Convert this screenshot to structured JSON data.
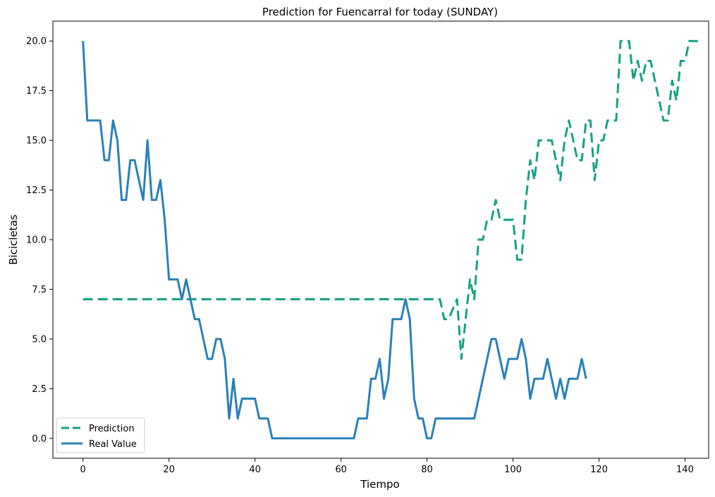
{
  "chart_data": {
    "type": "line",
    "title": "Prediction for Fuencarral for today (SUNDAY)",
    "xlabel": "Tiempo",
    "ylabel": "Bicicletas",
    "xlim": [
      -7,
      145.5
    ],
    "ylim": [
      -1,
      21
    ],
    "xticks": [
      0,
      20,
      40,
      60,
      80,
      100,
      120,
      140
    ],
    "xtick_labels": [
      "0",
      "20",
      "40",
      "60",
      "80",
      "100",
      "120",
      "140"
    ],
    "yticks": [
      0,
      2.5,
      5,
      7.5,
      10,
      12.5,
      15,
      17.5,
      20
    ],
    "ytick_labels": [
      "0.0",
      "2.5",
      "5.0",
      "7.5",
      "10.0",
      "12.5",
      "15.0",
      "17.5",
      "20.0"
    ],
    "grid": false,
    "legend_position": "lower-left",
    "series": [
      {
        "name": "Prediction",
        "color": "#16a085",
        "style": "dashed",
        "points": [
          [
            0,
            7
          ],
          [
            83,
            7
          ],
          [
            84,
            6
          ],
          [
            85,
            6
          ],
          [
            86,
            6.5
          ],
          [
            87,
            7
          ],
          [
            88,
            4
          ],
          [
            89,
            6
          ],
          [
            90,
            8
          ],
          [
            91,
            7
          ],
          [
            92,
            10
          ],
          [
            93,
            10
          ],
          [
            94,
            11
          ],
          [
            95,
            11
          ],
          [
            96,
            12
          ],
          [
            97,
            11
          ],
          [
            98,
            11
          ],
          [
            99,
            11
          ],
          [
            100,
            11
          ],
          [
            101,
            9
          ],
          [
            102,
            9
          ],
          [
            103,
            12
          ],
          [
            104,
            14
          ],
          [
            105,
            13
          ],
          [
            106,
            15
          ],
          [
            107,
            15
          ],
          [
            108,
            15
          ],
          [
            109,
            15
          ],
          [
            110,
            14
          ],
          [
            111,
            13
          ],
          [
            112,
            15
          ],
          [
            113,
            16
          ],
          [
            114,
            15
          ],
          [
            115,
            14
          ],
          [
            116,
            14
          ],
          [
            117,
            16
          ],
          [
            118,
            16
          ],
          [
            119,
            13
          ],
          [
            120,
            15
          ],
          [
            121,
            15
          ],
          [
            122,
            16
          ],
          [
            123,
            16
          ],
          [
            124,
            16
          ],
          [
            125,
            20
          ],
          [
            126,
            20
          ],
          [
            127,
            20
          ],
          [
            128,
            18
          ],
          [
            129,
            19
          ],
          [
            130,
            18
          ],
          [
            131,
            19
          ],
          [
            132,
            19
          ],
          [
            133,
            18
          ],
          [
            134,
            17
          ],
          [
            135,
            16
          ],
          [
            136,
            16
          ],
          [
            137,
            18
          ],
          [
            138,
            17
          ],
          [
            139,
            19
          ],
          [
            140,
            19
          ],
          [
            141,
            20
          ],
          [
            142,
            20
          ],
          [
            143,
            20
          ]
        ]
      },
      {
        "name": "Real Value",
        "color": "#2980b9",
        "style": "solid",
        "points": [
          [
            0,
            20
          ],
          [
            1,
            16
          ],
          [
            2,
            16
          ],
          [
            3,
            16
          ],
          [
            4,
            16
          ],
          [
            5,
            14
          ],
          [
            6,
            14
          ],
          [
            7,
            16
          ],
          [
            8,
            15
          ],
          [
            9,
            12
          ],
          [
            10,
            12
          ],
          [
            11,
            14
          ],
          [
            12,
            14
          ],
          [
            13,
            13
          ],
          [
            14,
            12
          ],
          [
            15,
            15
          ],
          [
            16,
            12
          ],
          [
            17,
            12
          ],
          [
            18,
            13
          ],
          [
            19,
            11
          ],
          [
            20,
            8
          ],
          [
            21,
            8
          ],
          [
            22,
            8
          ],
          [
            23,
            7
          ],
          [
            24,
            8
          ],
          [
            25,
            7
          ],
          [
            26,
            6
          ],
          [
            27,
            6
          ],
          [
            28,
            5
          ],
          [
            29,
            4
          ],
          [
            30,
            4
          ],
          [
            31,
            5
          ],
          [
            32,
            5
          ],
          [
            33,
            4
          ],
          [
            34,
            1
          ],
          [
            35,
            3
          ],
          [
            36,
            1
          ],
          [
            37,
            2
          ],
          [
            38,
            2
          ],
          [
            39,
            2
          ],
          [
            40,
            2
          ],
          [
            41,
            1
          ],
          [
            42,
            1
          ],
          [
            43,
            1
          ],
          [
            44,
            0
          ],
          [
            63,
            0
          ],
          [
            64,
            1
          ],
          [
            65,
            1
          ],
          [
            66,
            1
          ],
          [
            67,
            3
          ],
          [
            68,
            3
          ],
          [
            69,
            4
          ],
          [
            70,
            2
          ],
          [
            71,
            3
          ],
          [
            72,
            6
          ],
          [
            73,
            6
          ],
          [
            74,
            6
          ],
          [
            75,
            7
          ],
          [
            76,
            6
          ],
          [
            77,
            2
          ],
          [
            78,
            1
          ],
          [
            79,
            1
          ],
          [
            80,
            0
          ],
          [
            81,
            0
          ],
          [
            82,
            1
          ],
          [
            91,
            1
          ],
          [
            92,
            2
          ],
          [
            93,
            3
          ],
          [
            94,
            4
          ],
          [
            95,
            5
          ],
          [
            96,
            5
          ],
          [
            97,
            4
          ],
          [
            98,
            3
          ],
          [
            99,
            4
          ],
          [
            100,
            4
          ],
          [
            101,
            4
          ],
          [
            102,
            5
          ],
          [
            103,
            4
          ],
          [
            104,
            2
          ],
          [
            105,
            3
          ],
          [
            106,
            3
          ],
          [
            107,
            3
          ],
          [
            108,
            4
          ],
          [
            109,
            3
          ],
          [
            110,
            2
          ],
          [
            111,
            3
          ],
          [
            112,
            2
          ],
          [
            113,
            3
          ],
          [
            114,
            3
          ],
          [
            115,
            3
          ],
          [
            116,
            4
          ],
          [
            117,
            3
          ]
        ]
      }
    ]
  }
}
